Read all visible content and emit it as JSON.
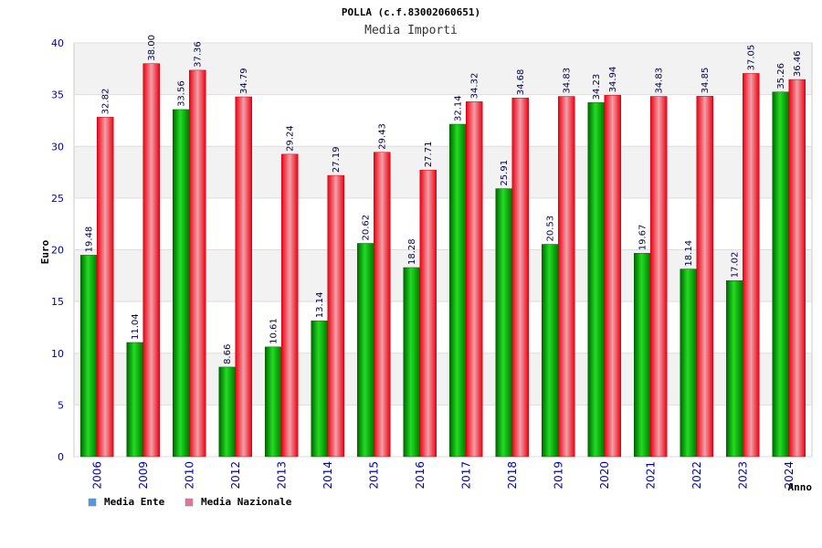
{
  "chart_data": {
    "type": "bar",
    "title": "POLLA (c.f.83002060651)",
    "subtitle": "Media Importi",
    "xlabel": "Anno",
    "ylabel": "Euro",
    "ylim": [
      0,
      40
    ],
    "yticks": [
      0,
      5,
      10,
      15,
      20,
      25,
      30,
      35,
      40
    ],
    "grid": true,
    "legend_position": "bottom-left",
    "categories": [
      "2006",
      "2009",
      "2010",
      "2012",
      "2013",
      "2014",
      "2015",
      "2016",
      "2017",
      "2018",
      "2019",
      "2020",
      "2021",
      "2022",
      "2023",
      "2024"
    ],
    "series": [
      {
        "name": "Media Ente",
        "color": "#00aa00",
        "legend_color": "#5599dd",
        "values": [
          19.48,
          11.04,
          33.56,
          8.66,
          10.61,
          13.14,
          20.62,
          18.28,
          32.14,
          25.91,
          20.53,
          34.23,
          19.67,
          18.14,
          17.02,
          35.26
        ]
      },
      {
        "name": "Media Nazionale",
        "color": "#ee1122",
        "legend_color": "#dd7799",
        "values": [
          32.82,
          38.0,
          37.36,
          34.79,
          29.24,
          27.19,
          29.43,
          27.71,
          34.32,
          34.68,
          34.83,
          34.94,
          34.83,
          34.85,
          37.05,
          36.46
        ]
      }
    ]
  }
}
